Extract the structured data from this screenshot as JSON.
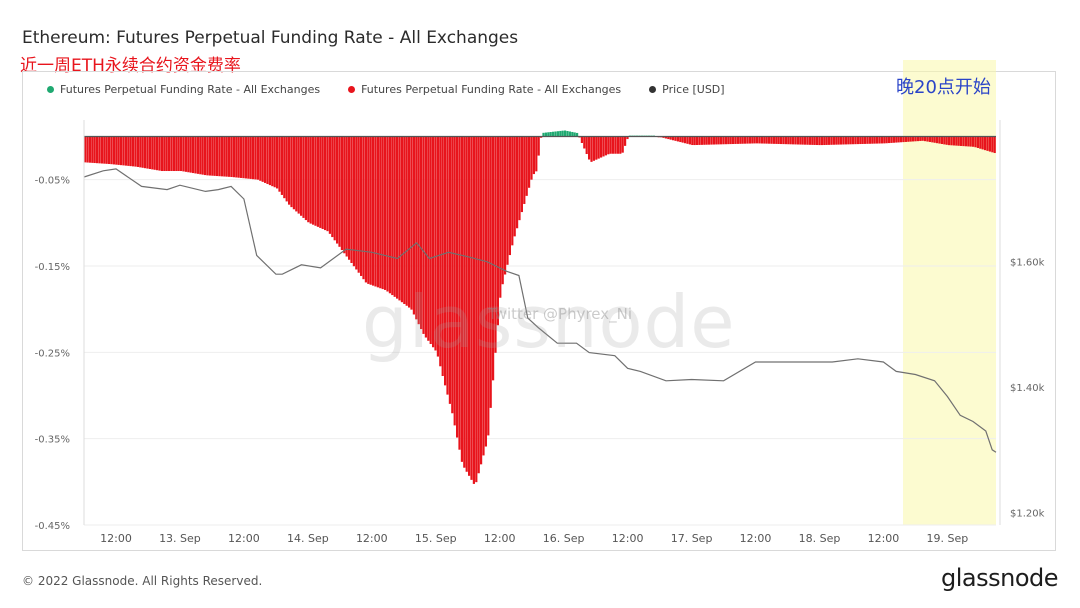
{
  "header": {
    "title": "Ethereum: Futures Perpetual Funding Rate - All Exchanges",
    "subtitle_cn": "近一周ETH永续合约资金费率"
  },
  "annotation": {
    "highlight_label": "晚20点开始"
  },
  "watermark": {
    "brand": "glassnode",
    "handle": "Twitter @Phyrex_Ni"
  },
  "footer": {
    "copyright": "© 2022 Glassnode. All Rights Reserved.",
    "brand": "glassnode"
  },
  "colors": {
    "positive": "#1fa971",
    "negative": "#e8141c",
    "price": "#707070",
    "highlight": "#faf8aa",
    "annotation": "#2a44c8"
  },
  "chart_data": {
    "type": "bar",
    "legend": [
      {
        "name": "Futures Perpetual Funding Rate - All Exchanges",
        "color": "#1fa971"
      },
      {
        "name": "Futures Perpetual Funding Rate - All Exchanges",
        "color": "#e8141c"
      },
      {
        "name": "Price [USD]",
        "color": "#333333"
      }
    ],
    "x_ticks": [
      "12:00",
      "13. Sep",
      "12:00",
      "14. Sep",
      "12:00",
      "15. Sep",
      "12:00",
      "16. Sep",
      "12:00",
      "17. Sep",
      "12:00",
      "18. Sep",
      "12:00",
      "19. Sep"
    ],
    "y_left_ticks": [
      "-0.05%",
      "-0.15%",
      "-0.25%",
      "-0.35%",
      "-0.45%"
    ],
    "y_left_range": [
      -0.45,
      0.0075
    ],
    "y_right_ticks": [
      "$1.60k",
      "$1.40k",
      "$1.20k"
    ],
    "y_right_range": [
      1180,
      1810
    ],
    "x_range_days": [
      12.25,
      19.38
    ],
    "funding_rate_series": {
      "name": "Futures Perpetual Funding Rate - All Exchanges",
      "time_days": [
        12.25,
        12.45,
        12.65,
        12.85,
        13.0,
        13.2,
        13.4,
        13.6,
        13.75,
        13.85,
        14.0,
        14.15,
        14.3,
        14.45,
        14.6,
        14.8,
        14.9,
        15.0,
        15.05,
        15.12,
        15.2,
        15.3,
        15.4,
        15.5,
        15.6,
        15.7,
        15.75,
        15.78,
        15.82,
        16.0,
        16.1,
        16.2,
        16.35,
        16.45,
        16.5,
        16.7,
        17.0,
        17.5,
        18.0,
        18.5,
        18.8,
        19.0,
        19.2,
        19.38
      ],
      "values": [
        -0.03,
        -0.032,
        -0.035,
        -0.04,
        -0.04,
        -0.045,
        -0.047,
        -0.05,
        -0.06,
        -0.08,
        -0.1,
        -0.11,
        -0.14,
        -0.17,
        -0.178,
        -0.2,
        -0.23,
        -0.25,
        -0.28,
        -0.32,
        -0.38,
        -0.405,
        -0.35,
        -0.18,
        -0.12,
        -0.07,
        -0.045,
        -0.04,
        0.004,
        0.007,
        0.004,
        -0.03,
        -0.02,
        -0.02,
        0.001,
        0.001,
        -0.01,
        -0.008,
        -0.01,
        -0.008,
        -0.005,
        -0.01,
        -0.012,
        -0.02
      ]
    },
    "price_series": {
      "name": "Price [USD]",
      "time_days": [
        12.25,
        12.4,
        12.5,
        12.7,
        12.9,
        13.0,
        13.2,
        13.3,
        13.4,
        13.5,
        13.6,
        13.75,
        13.8,
        13.95,
        14.1,
        14.3,
        14.5,
        14.7,
        14.85,
        14.95,
        15.1,
        15.25,
        15.4,
        15.55,
        15.65,
        15.72,
        15.8,
        15.95,
        16.1,
        16.2,
        16.4,
        16.5,
        16.6,
        16.8,
        17.0,
        17.25,
        17.5,
        17.7,
        17.9,
        18.1,
        18.3,
        18.5,
        18.6,
        18.75,
        18.9,
        19.0,
        19.1,
        19.2,
        19.3,
        19.35,
        19.38
      ],
      "values": [
        1735,
        1745,
        1748,
        1720,
        1715,
        1722,
        1712,
        1715,
        1720,
        1700,
        1610,
        1580,
        1580,
        1595,
        1590,
        1620,
        1615,
        1605,
        1630,
        1605,
        1615,
        1608,
        1600,
        1585,
        1578,
        1510,
        1495,
        1470,
        1470,
        1455,
        1450,
        1430,
        1425,
        1410,
        1412,
        1410,
        1440,
        1440,
        1440,
        1440,
        1445,
        1440,
        1425,
        1420,
        1410,
        1385,
        1355,
        1345,
        1330,
        1300,
        1296
      ]
    }
  }
}
